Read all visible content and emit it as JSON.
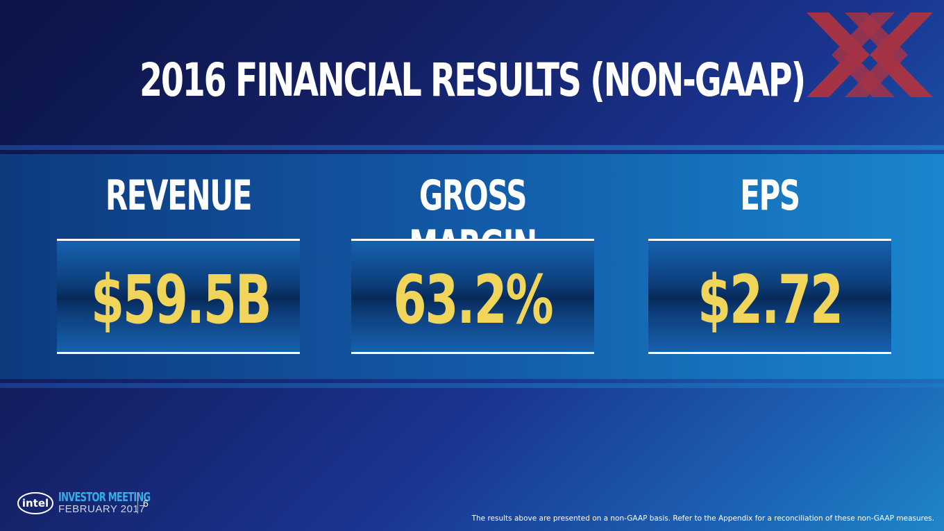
{
  "slide": {
    "title": "2016 Financial Results (Non-GAAP)",
    "metrics": [
      {
        "label": "Revenue",
        "value": "$59.5B"
      },
      {
        "label": "Gross Margin",
        "value": "63.2%"
      },
      {
        "label": "EPS",
        "value": "$2.72"
      }
    ],
    "footnote": "The results above are presented on a non-GAAP basis. Refer to the Appendix for a reconciliation of these non-GAAP measures."
  },
  "footer": {
    "logo_text": "intel",
    "event_name": "INVESTOR MEETING",
    "event_date": "FEBRUARY 2017",
    "page_number": "6"
  },
  "colors": {
    "value_color": "#f0d55a",
    "xx_logo_color": "#b0333f",
    "event_name_color": "#2fb0e8"
  },
  "icons": {
    "top_right": "xx-logo-icon",
    "footer": "intel-logo-icon"
  }
}
